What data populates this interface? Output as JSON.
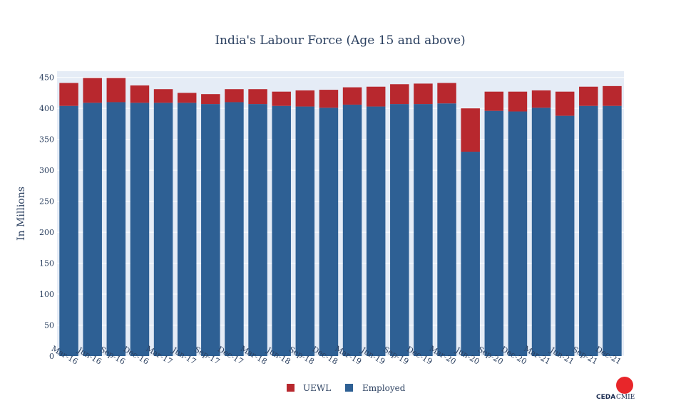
{
  "chart_data": {
    "type": "bar",
    "stacked": true,
    "title": "India's Labour Force (Age 15 and above)",
    "xlabel": "",
    "ylabel": "In Millions",
    "ylim": [
      0,
      460
    ],
    "yticks": [
      0,
      50,
      100,
      150,
      200,
      250,
      300,
      350,
      400,
      450
    ],
    "categories": [
      "Mar-16",
      "Jun-16",
      "Sep-16",
      "Dec-16",
      "Mar-17",
      "Jun-17",
      "Sep-17",
      "Dec-17",
      "Mar-18",
      "Jun-18",
      "Sep-18",
      "Dec-18",
      "Mar-19",
      "Jun-19",
      "Sep-19",
      "Dec-19",
      "Mar-20",
      "Jun-20",
      "Sep-20",
      "Dec-20",
      "Mar-21",
      "Jun-21",
      "Sep-21",
      "Dec-21"
    ],
    "series": [
      {
        "name": "Employed",
        "color": "#2e6094",
        "values": [
          404,
          409,
          410,
          409,
          409,
          409,
          407,
          410,
          407,
          404,
          403,
          401,
          406,
          403,
          407,
          407,
          408,
          330,
          396,
          395,
          401,
          388,
          404,
          404
        ]
      },
      {
        "name": "UEWL",
        "color": "#b8282e",
        "values": [
          37,
          40,
          39,
          28,
          22,
          16,
          16,
          21,
          24,
          23,
          26,
          29,
          28,
          32,
          32,
          33,
          33,
          70,
          31,
          32,
          28,
          39,
          31,
          32
        ]
      }
    ],
    "legend": {
      "position": "bottom",
      "items": [
        "UEWL",
        "Employed"
      ]
    }
  },
  "logo": {
    "name": "CEDA CMIE",
    "color": "#e8262a"
  }
}
